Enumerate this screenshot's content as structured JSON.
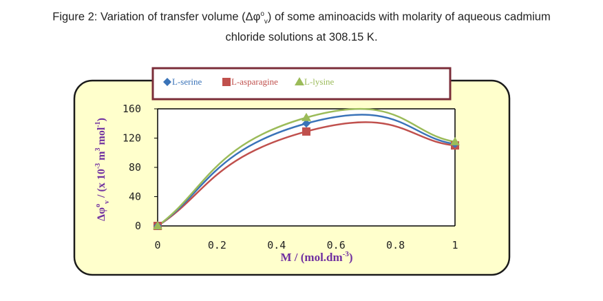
{
  "caption": {
    "line1_pre": "Figure 2: Variation of transfer volume (Δφ",
    "line1_sup": "o",
    "line1_sub": "v",
    "line1_post": ") of some aminoacids with molarity of aqueous cadmium",
    "line2": "chloride solutions at 308.15 K."
  },
  "chart_data": {
    "type": "line",
    "title": "",
    "xlabel": "M / (mol.dm-3)",
    "ylabel": "Δφov / (x 10-3 m3 mol-1)",
    "x": [
      0,
      0.5,
      1
    ],
    "xlim": [
      0,
      1
    ],
    "ylim": [
      0,
      160
    ],
    "xticks": [
      "0",
      "0.2",
      "0.4",
      "0.6",
      "0.8",
      "1"
    ],
    "yticks": [
      "0",
      "40",
      "80",
      "120",
      "160"
    ],
    "grid": false,
    "legend_position": "top",
    "smooth": true,
    "series": [
      {
        "name": "L-serine",
        "values": [
          0,
          140,
          112
        ],
        "color": "#3a73b8",
        "marker": "diamond"
      },
      {
        "name": "L-asparagine",
        "values": [
          0,
          129,
          110
        ],
        "color": "#c0504d",
        "marker": "square"
      },
      {
        "name": "L-lysine",
        "values": [
          0,
          148,
          115
        ],
        "color": "#9bbb59",
        "marker": "triangle"
      }
    ]
  },
  "colors": {
    "panel_fill": "#ffffcc",
    "panel_border": "#1a1a1a",
    "legend_border": "#7b2d39",
    "axis_label": "#7030a0"
  }
}
